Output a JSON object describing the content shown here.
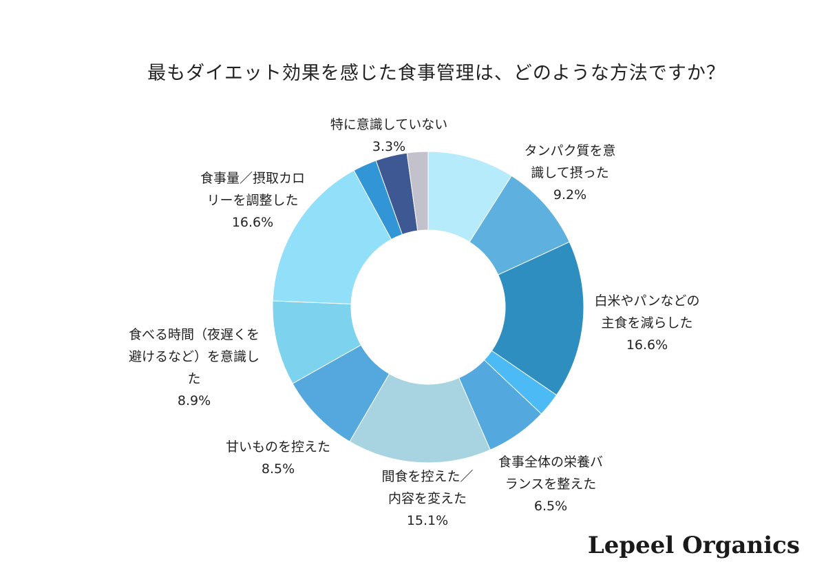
{
  "chart_data": {
    "type": "pie",
    "title": "最もダイエット効果を感じた食事管理は、どのような方法ですか？",
    "slices": [
      {
        "label_lines": [
          "",
          ""
        ],
        "value": null,
        "value_text": "",
        "color": "#b6ebfb"
      },
      {
        "label_lines": [
          "タンパク質を意",
          "識して摂った"
        ],
        "value": 9.2,
        "value_text": "9.2%",
        "color": "#5eb1de"
      },
      {
        "label_lines": [
          "白米やパンなどの",
          "主食を減らした"
        ],
        "value": 16.6,
        "value_text": "16.6%",
        "color": "#2e8ebf"
      },
      {
        "label_lines": [
          "",
          ""
        ],
        "value": null,
        "value_text": "",
        "color": "#4cbaf5"
      },
      {
        "label_lines": [
          "食事全体の栄養バ",
          "ランスを整えた"
        ],
        "value": 6.5,
        "value_text": "6.5%",
        "color": "#53a9de"
      },
      {
        "label_lines": [
          "間食を控えた／",
          "内容を変えた"
        ],
        "value": 15.1,
        "value_text": "15.1%",
        "color": "#a8d4e2"
      },
      {
        "label_lines": [
          "甘いものを控えた"
        ],
        "value": 8.5,
        "value_text": "8.5%",
        "color": "#55a8dd"
      },
      {
        "label_lines": [
          "食べる時間（夜遅くを",
          "避けるなど）を意識し",
          "た"
        ],
        "value": 8.9,
        "value_text": "8.9%",
        "color": "#7dd2ed"
      },
      {
        "label_lines": [
          "食事量／摂取カロ",
          "リーを調整した"
        ],
        "value": 16.6,
        "value_text": "16.6%",
        "color": "#92dffa"
      },
      {
        "label_lines": [
          "",
          ""
        ],
        "value": null,
        "value_text": "",
        "color": "#3296d6"
      },
      {
        "label_lines": [
          "特に意識していない"
        ],
        "value": 3.3,
        "value_text": "3.3%",
        "color": "#3d5892"
      },
      {
        "label_lines": [
          "",
          ""
        ],
        "value": null,
        "value_text": "",
        "color": "#c3c2cc"
      }
    ],
    "estimated_values": [
      9.1,
      9.2,
      16.6,
      2.5,
      6.5,
      15.1,
      8.5,
      8.9,
      16.6,
      2.5,
      3.3,
      2.2
    ]
  },
  "brand": "Lepeel Organics"
}
